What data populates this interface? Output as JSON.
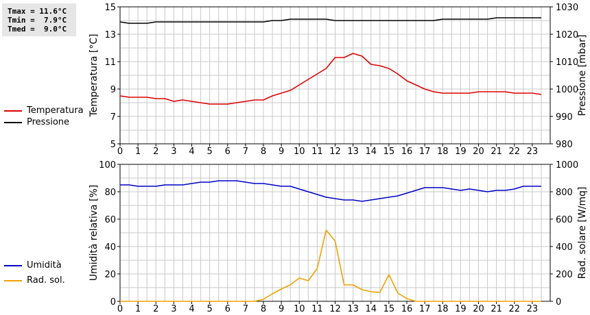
{
  "stats": {
    "tmax": "Tmax = 11.6°C",
    "tmin": "Tmin =  7.9°C",
    "tmed": "Tmed =  9.0°C"
  },
  "legend": {
    "temperature": "Temperatura",
    "pressure": "Pressione",
    "humidity": "Umidità",
    "radiation": "Rad. sol."
  },
  "colors": {
    "temperature": "#dd0000",
    "pressure": "#000000",
    "humidity": "#0000c8",
    "radiation": "#f0a000",
    "grid": "#c8c8c8"
  },
  "chart_data": [
    {
      "type": "line",
      "xlabel": "",
      "x_ticks": [
        "0",
        "1",
        "2",
        "3",
        "4",
        "5",
        "6",
        "7",
        "8",
        "9",
        "10",
        "11",
        "12",
        "13",
        "14",
        "15",
        "16",
        "17",
        "18",
        "19",
        "20",
        "21",
        "22",
        "23"
      ],
      "xlim": [
        0,
        24
      ],
      "ylabel": "Temperatura [°C]",
      "ylim": [
        5,
        15
      ],
      "y_ticks": [
        "5",
        "7",
        "9",
        "11",
        "13",
        "15"
      ],
      "y2label": "Pressione [mbar]",
      "y2lim": [
        980,
        1030
      ],
      "y2_ticks": [
        "980",
        "990",
        "1000",
        "1010",
        "1020",
        "1030"
      ],
      "grid": true,
      "series": [
        {
          "name": "Temperatura",
          "axis": "left",
          "x": [
            0,
            0.5,
            1,
            1.5,
            2,
            2.5,
            3,
            3.5,
            4,
            4.5,
            5,
            5.5,
            6,
            6.5,
            7,
            7.5,
            8,
            8.5,
            9,
            9.5,
            10,
            10.5,
            11,
            11.5,
            12,
            12.5,
            13,
            13.5,
            14,
            14.5,
            15,
            15.5,
            16,
            16.5,
            17,
            17.5,
            18,
            18.5,
            19,
            19.5,
            20,
            20.5,
            21,
            21.5,
            22,
            22.5,
            23,
            23.5
          ],
          "values": [
            8.5,
            8.4,
            8.4,
            8.4,
            8.3,
            8.3,
            8.1,
            8.2,
            8.1,
            8.0,
            7.9,
            7.9,
            7.9,
            8.0,
            8.1,
            8.2,
            8.2,
            8.5,
            8.7,
            8.9,
            9.3,
            9.7,
            10.1,
            10.5,
            11.3,
            11.3,
            11.6,
            11.4,
            10.8,
            10.7,
            10.5,
            10.1,
            9.6,
            9.3,
            9.0,
            8.8,
            8.7,
            8.7,
            8.7,
            8.7,
            8.8,
            8.8,
            8.8,
            8.8,
            8.7,
            8.7,
            8.7,
            8.6
          ]
        },
        {
          "name": "Pressione",
          "axis": "right",
          "x": [
            0,
            0.5,
            1,
            1.5,
            2,
            2.5,
            3,
            3.5,
            4,
            4.5,
            5,
            5.5,
            6,
            6.5,
            7,
            7.5,
            8,
            8.5,
            9,
            9.5,
            10,
            10.5,
            11,
            11.5,
            12,
            12.5,
            13,
            13.5,
            14,
            14.5,
            15,
            15.5,
            16,
            16.5,
            17,
            17.5,
            18,
            18.5,
            19,
            19.5,
            20,
            20.5,
            21,
            21.5,
            22,
            22.5,
            23,
            23.5
          ],
          "values": [
            1024.5,
            1024,
            1024,
            1024,
            1024.5,
            1024.5,
            1024.5,
            1024.5,
            1024.5,
            1024.5,
            1024.5,
            1024.5,
            1024.5,
            1024.5,
            1024.5,
            1024.5,
            1024.5,
            1025,
            1025,
            1025.5,
            1025.5,
            1025.5,
            1025.5,
            1025.5,
            1025,
            1025,
            1025,
            1025,
            1025,
            1025,
            1025,
            1025,
            1025,
            1025,
            1025,
            1025,
            1025.5,
            1025.5,
            1025.5,
            1025.5,
            1025.5,
            1025.5,
            1026,
            1026,
            1026,
            1026,
            1026,
            1026
          ]
        }
      ]
    },
    {
      "type": "line",
      "xlabel": "",
      "x_ticks": [
        "0",
        "1",
        "2",
        "3",
        "4",
        "5",
        "6",
        "7",
        "8",
        "9",
        "10",
        "11",
        "12",
        "13",
        "14",
        "15",
        "16",
        "17",
        "18",
        "19",
        "20",
        "21",
        "22",
        "23"
      ],
      "xlim": [
        0,
        24
      ],
      "ylabel": "Umidità relativa [%]",
      "ylim": [
        0,
        100
      ],
      "y_ticks": [
        "0",
        "20",
        "40",
        "60",
        "80",
        "100"
      ],
      "y2label": "Rad. solare [W/mq]",
      "y2lim": [
        0,
        1000
      ],
      "y2_ticks": [
        "0",
        "200",
        "400",
        "600",
        "800",
        "1000"
      ],
      "grid": true,
      "series": [
        {
          "name": "Umidità",
          "axis": "left",
          "x": [
            0,
            0.5,
            1,
            1.5,
            2,
            2.5,
            3,
            3.5,
            4,
            4.5,
            5,
            5.5,
            6,
            6.5,
            7,
            7.5,
            8,
            8.5,
            9,
            9.5,
            10,
            10.5,
            11,
            11.5,
            12,
            12.5,
            13,
            13.5,
            14,
            14.5,
            15,
            15.5,
            16,
            16.5,
            17,
            17.5,
            18,
            18.5,
            19,
            19.5,
            20,
            20.5,
            21,
            21.5,
            22,
            22.5,
            23,
            23.5
          ],
          "values": [
            85,
            85,
            84,
            84,
            84,
            85,
            85,
            85,
            86,
            87,
            87,
            88,
            88,
            88,
            87,
            86,
            86,
            85,
            84,
            84,
            82,
            80,
            78,
            76,
            75,
            74,
            74,
            73,
            74,
            75,
            76,
            77,
            79,
            81,
            83,
            83,
            83,
            82,
            81,
            82,
            81,
            80,
            81,
            81,
            82,
            84,
            84,
            84
          ]
        },
        {
          "name": "Rad. sol.",
          "axis": "right",
          "x": [
            0,
            0.5,
            1,
            1.5,
            2,
            2.5,
            3,
            3.5,
            4,
            4.5,
            5,
            5.5,
            6,
            6.5,
            7,
            7.5,
            8,
            8.5,
            9,
            9.5,
            10,
            10.5,
            11,
            11.5,
            12,
            12.5,
            13,
            13.5,
            14,
            14.5,
            15,
            15.5,
            16,
            16.5,
            17,
            17.5,
            18,
            18.5,
            19,
            19.5,
            20,
            20.5,
            21,
            21.5,
            22,
            22.5,
            23,
            23.5
          ],
          "values": [
            0,
            0,
            0,
            0,
            0,
            0,
            0,
            0,
            0,
            0,
            0,
            0,
            0,
            0,
            0,
            0,
            15,
            55,
            90,
            120,
            170,
            150,
            240,
            520,
            440,
            120,
            120,
            85,
            70,
            65,
            195,
            60,
            20,
            0,
            0,
            0,
            0,
            0,
            0,
            0,
            0,
            0,
            0,
            0,
            0,
            0,
            0,
            0
          ]
        }
      ]
    }
  ]
}
